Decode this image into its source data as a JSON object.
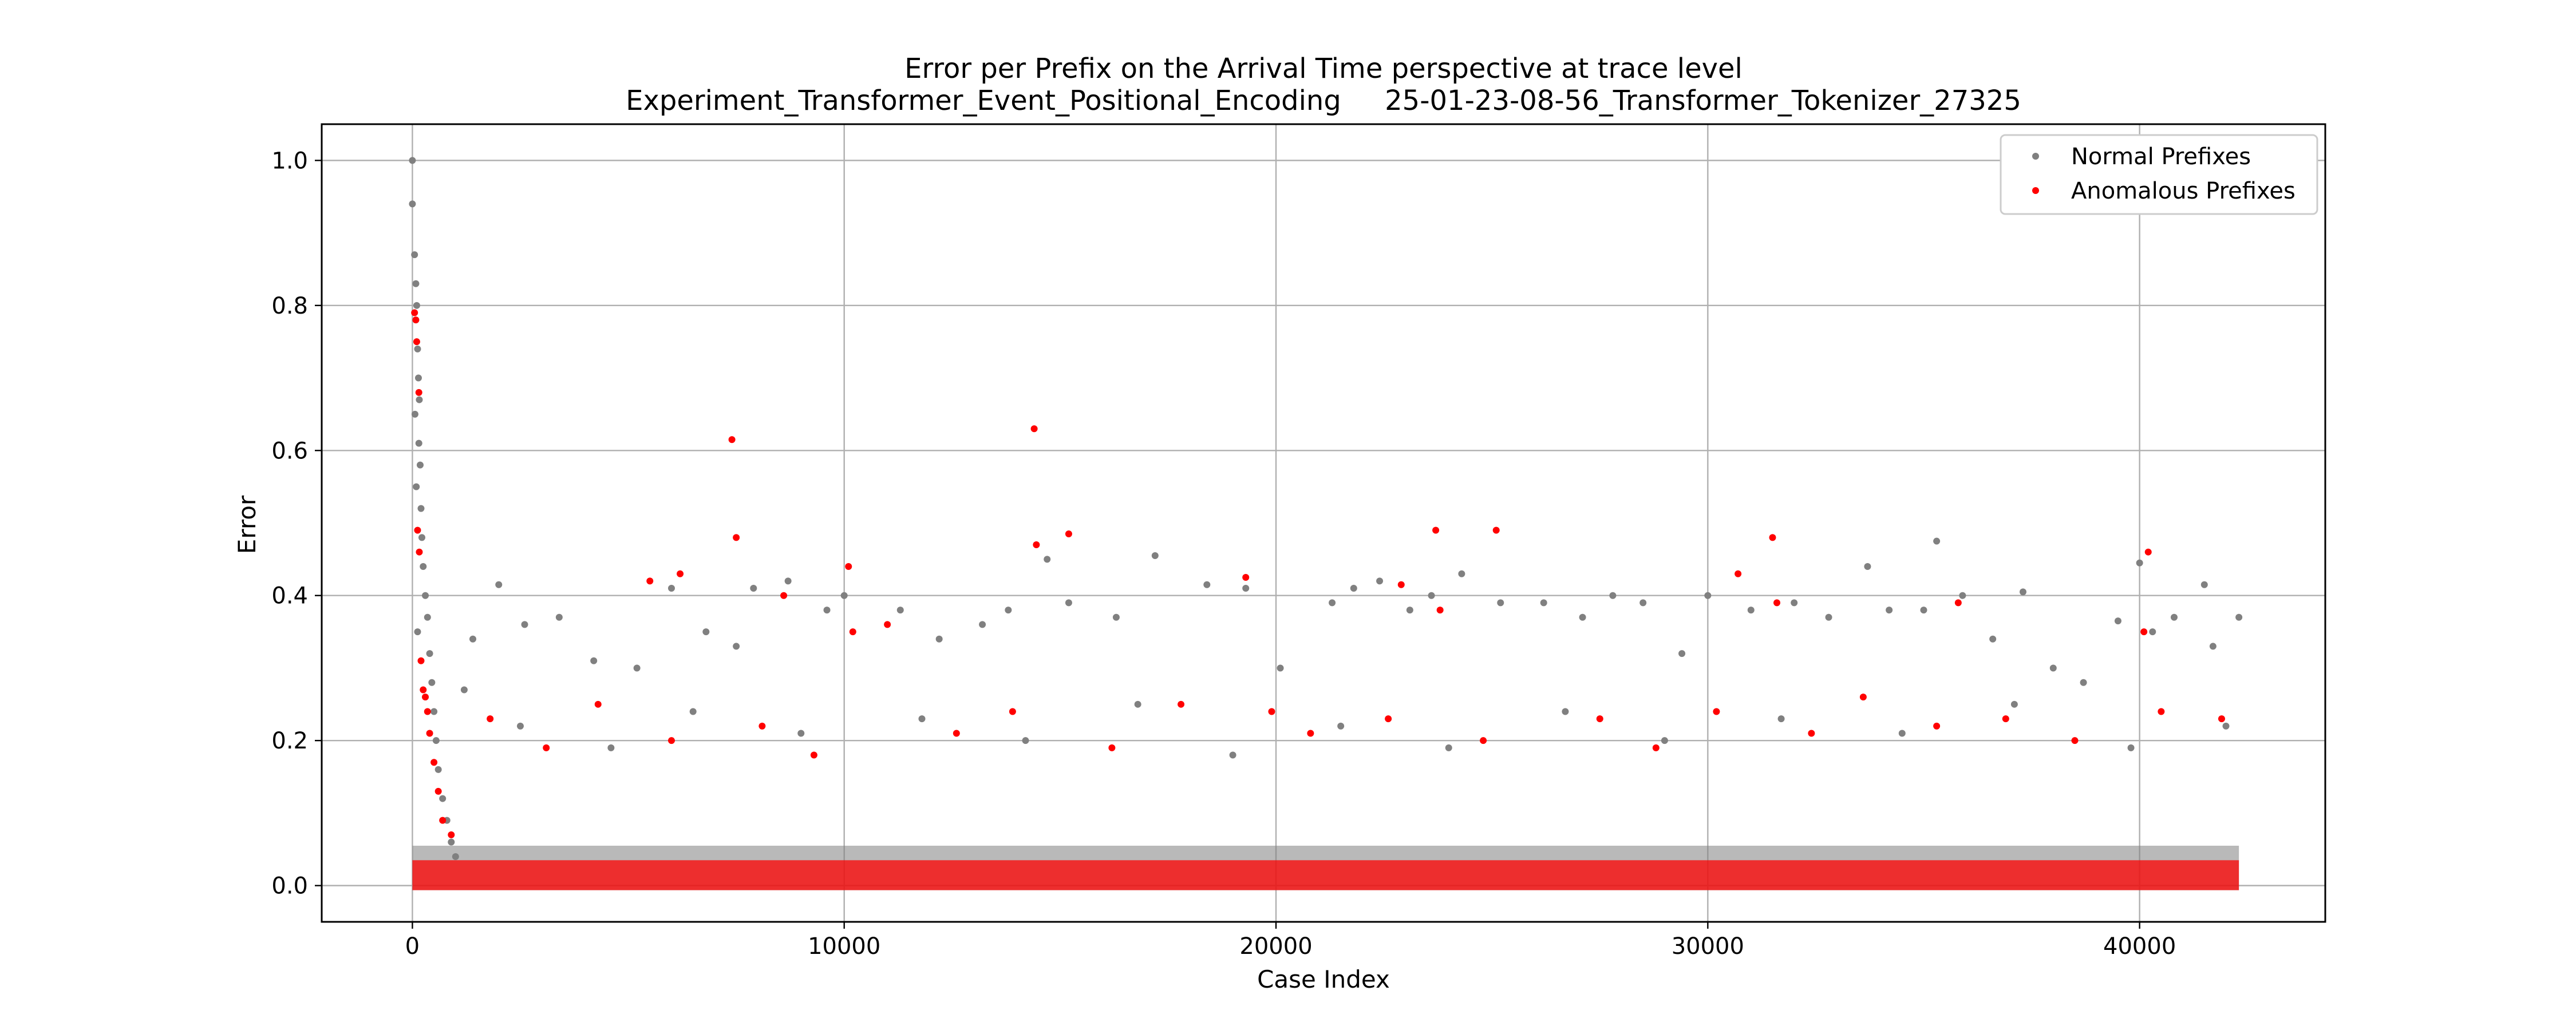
{
  "chart_data": {
    "type": "scatter",
    "title": "Error per Prefix on the Arrival Time perspective at trace level",
    "subtitle": "Experiment_Transformer_Event_Positional_Encoding     25-01-23-08-56_Transformer_Tokenizer_27325",
    "xlabel": "Case Index",
    "ylabel": "Error",
    "xlim": [
      -2100,
      44300
    ],
    "ylim": [
      -0.05,
      1.05
    ],
    "xticks": [
      0,
      10000,
      20000,
      30000,
      40000
    ],
    "xtick_labels": [
      "0",
      "10000",
      "20000",
      "30000",
      "40000"
    ],
    "yticks": [
      0.0,
      0.2,
      0.4,
      0.6,
      0.8,
      1.0
    ],
    "ytick_labels": [
      "0.0",
      "0.2",
      "0.4",
      "0.6",
      "0.8",
      "1.0"
    ],
    "grid": true,
    "legend_position": "top-right",
    "series": [
      {
        "name": "Normal Prefixes",
        "color": "#808080",
        "points": [
          [
            0,
            1.0
          ],
          [
            0,
            0.94
          ],
          [
            50,
            0.87
          ],
          [
            80,
            0.83
          ],
          [
            100,
            0.8
          ],
          [
            120,
            0.74
          ],
          [
            140,
            0.7
          ],
          [
            160,
            0.67
          ],
          [
            60,
            0.65
          ],
          [
            150,
            0.61
          ],
          [
            180,
            0.58
          ],
          [
            90,
            0.55
          ],
          [
            200,
            0.52
          ],
          [
            220,
            0.48
          ],
          [
            250,
            0.44
          ],
          [
            300,
            0.4
          ],
          [
            350,
            0.37
          ],
          [
            120,
            0.35
          ],
          [
            400,
            0.32
          ],
          [
            450,
            0.28
          ],
          [
            500,
            0.24
          ],
          [
            550,
            0.2
          ],
          [
            600,
            0.16
          ],
          [
            700,
            0.12
          ],
          [
            800,
            0.09
          ],
          [
            900,
            0.06
          ],
          [
            1000,
            0.04
          ],
          [
            1200,
            0.27
          ],
          [
            1400,
            0.34
          ],
          [
            2000,
            0.415
          ],
          [
            2600,
            0.36
          ],
          [
            3400,
            0.37
          ],
          [
            4200,
            0.31
          ],
          [
            5200,
            0.3
          ],
          [
            6000,
            0.41
          ],
          [
            6800,
            0.35
          ],
          [
            7500,
            0.33
          ],
          [
            7900,
            0.41
          ],
          [
            8700,
            0.42
          ],
          [
            9600,
            0.38
          ],
          [
            10000,
            0.4
          ],
          [
            11300,
            0.38
          ],
          [
            12200,
            0.34
          ],
          [
            13200,
            0.36
          ],
          [
            13800,
            0.38
          ],
          [
            14700,
            0.45
          ],
          [
            15200,
            0.39
          ],
          [
            16300,
            0.37
          ],
          [
            17200,
            0.455
          ],
          [
            18400,
            0.415
          ],
          [
            19300,
            0.41
          ],
          [
            20100,
            0.3
          ],
          [
            21300,
            0.39
          ],
          [
            21800,
            0.41
          ],
          [
            22400,
            0.42
          ],
          [
            23100,
            0.38
          ],
          [
            23600,
            0.4
          ],
          [
            24300,
            0.43
          ],
          [
            25200,
            0.39
          ],
          [
            26200,
            0.39
          ],
          [
            27100,
            0.37
          ],
          [
            27800,
            0.4
          ],
          [
            28500,
            0.39
          ],
          [
            29400,
            0.32
          ],
          [
            30000,
            0.4
          ],
          [
            31000,
            0.38
          ],
          [
            32000,
            0.39
          ],
          [
            32800,
            0.37
          ],
          [
            33700,
            0.44
          ],
          [
            34200,
            0.38
          ],
          [
            35000,
            0.38
          ],
          [
            35300,
            0.475
          ],
          [
            35900,
            0.4
          ],
          [
            36600,
            0.34
          ],
          [
            37300,
            0.405
          ],
          [
            38000,
            0.3
          ],
          [
            38700,
            0.28
          ],
          [
            39500,
            0.365
          ],
          [
            40000,
            0.445
          ],
          [
            40300,
            0.35
          ],
          [
            40800,
            0.37
          ],
          [
            41500,
            0.415
          ],
          [
            41700,
            0.33
          ],
          [
            42300,
            0.37
          ],
          [
            2500,
            0.22
          ],
          [
            4600,
            0.19
          ],
          [
            6500,
            0.24
          ],
          [
            9000,
            0.21
          ],
          [
            11800,
            0.23
          ],
          [
            14200,
            0.2
          ],
          [
            16800,
            0.25
          ],
          [
            19000,
            0.18
          ],
          [
            21500,
            0.22
          ],
          [
            24000,
            0.19
          ],
          [
            26700,
            0.24
          ],
          [
            29000,
            0.2
          ],
          [
            31700,
            0.23
          ],
          [
            34500,
            0.21
          ],
          [
            37100,
            0.25
          ],
          [
            39800,
            0.19
          ],
          [
            42000,
            0.22
          ]
        ]
      },
      {
        "name": "Anomalous Prefixes",
        "color": "#ff0000",
        "points": [
          [
            50,
            0.79
          ],
          [
            80,
            0.78
          ],
          [
            100,
            0.75
          ],
          [
            150,
            0.68
          ],
          [
            120,
            0.49
          ],
          [
            160,
            0.46
          ],
          [
            200,
            0.31
          ],
          [
            250,
            0.27
          ],
          [
            300,
            0.26
          ],
          [
            350,
            0.24
          ],
          [
            400,
            0.21
          ],
          [
            500,
            0.17
          ],
          [
            600,
            0.13
          ],
          [
            700,
            0.09
          ],
          [
            900,
            0.07
          ],
          [
            5500,
            0.42
          ],
          [
            6200,
            0.43
          ],
          [
            7400,
            0.615
          ],
          [
            7500,
            0.48
          ],
          [
            8600,
            0.4
          ],
          [
            10100,
            0.44
          ],
          [
            10200,
            0.35
          ],
          [
            11000,
            0.36
          ],
          [
            14400,
            0.63
          ],
          [
            14450,
            0.47
          ],
          [
            15200,
            0.485
          ],
          [
            19300,
            0.425
          ],
          [
            22900,
            0.415
          ],
          [
            23700,
            0.49
          ],
          [
            23800,
            0.38
          ],
          [
            25100,
            0.49
          ],
          [
            30700,
            0.43
          ],
          [
            31500,
            0.48
          ],
          [
            31600,
            0.39
          ],
          [
            35800,
            0.39
          ],
          [
            40200,
            0.46
          ],
          [
            40100,
            0.35
          ],
          [
            1800,
            0.23
          ],
          [
            3100,
            0.19
          ],
          [
            4300,
            0.25
          ],
          [
            6000,
            0.2
          ],
          [
            8100,
            0.22
          ],
          [
            9300,
            0.18
          ],
          [
            12600,
            0.21
          ],
          [
            13900,
            0.24
          ],
          [
            16200,
            0.19
          ],
          [
            17800,
            0.25
          ],
          [
            19900,
            0.24
          ],
          [
            20800,
            0.21
          ],
          [
            22600,
            0.23
          ],
          [
            24800,
            0.2
          ],
          [
            27500,
            0.23
          ],
          [
            28800,
            0.19
          ],
          [
            30200,
            0.24
          ],
          [
            32400,
            0.21
          ],
          [
            33600,
            0.26
          ],
          [
            35300,
            0.22
          ],
          [
            36900,
            0.23
          ],
          [
            38500,
            0.2
          ],
          [
            40500,
            0.24
          ],
          [
            41900,
            0.23
          ]
        ]
      }
    ]
  }
}
